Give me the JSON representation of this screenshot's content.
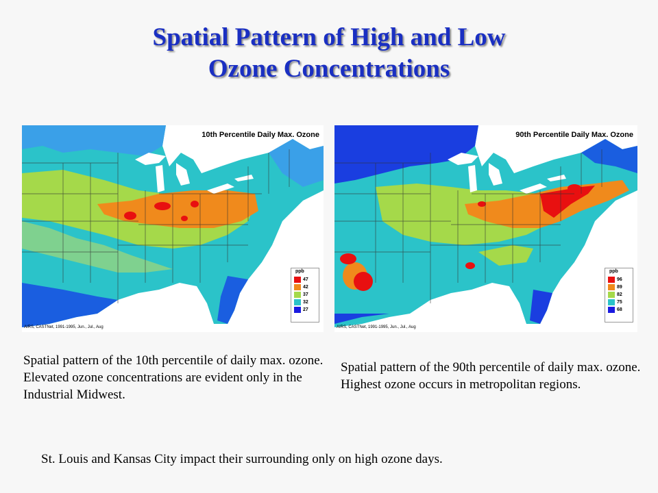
{
  "slide": {
    "title_line1": "Spatial Pattern of High and Low",
    "title_line2": "Ozone Concentrations",
    "colors": {
      "title": "#1a2fc2",
      "background": "#f7f7f7"
    }
  },
  "maps": [
    {
      "title": "10th Percentile Daily Max. Ozone",
      "credit": "AIRS, CASTNet, 1991-1995, Jun., Jul., Aug",
      "legend_title": "ppb",
      "legend": [
        {
          "value": "47",
          "color": "#e81010"
        },
        {
          "value": "42",
          "color": "#f08a1c"
        },
        {
          "value": "37",
          "color": "#a5d94a"
        },
        {
          "value": "32",
          "color": "#2bc3c9"
        },
        {
          "value": "27",
          "color": "#1a1ae0"
        }
      ]
    },
    {
      "title": "90th Percentile Daily Max. Ozone",
      "credit": "AIRS, CASTNet, 1991-1995, Jun., Jul., Aug",
      "legend_title": "ppb",
      "legend": [
        {
          "value": "96",
          "color": "#e81010"
        },
        {
          "value": "89",
          "color": "#f08a1c"
        },
        {
          "value": "82",
          "color": "#a5d94a"
        },
        {
          "value": "75",
          "color": "#2bc3c9"
        },
        {
          "value": "68",
          "color": "#1a1ae0"
        }
      ]
    }
  ],
  "captions": {
    "left": "Spatial pattern of the 10th percentile of daily max. ozone.  Elevated ozone concentrations are evident only in the Industrial Midwest.",
    "right": "Spatial pattern of the 90th percentile of daily max. ozone.  Highest ozone occurs in metropolitan regions.",
    "bottom": "St. Louis and Kansas City impact their surrounding only on high ozone days."
  }
}
